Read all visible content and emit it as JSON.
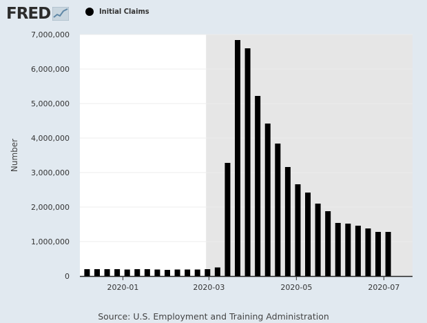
{
  "header": {
    "logo_text": "FRED",
    "legend_label": "Initial Claims"
  },
  "colors": {
    "background": "#e1e9f0",
    "plot_background": "#ffffff",
    "recession_shade": "#e6e6e6",
    "bar": "#000000"
  },
  "icons": {
    "logo": "fred-logo-graph-icon",
    "legend": "legend-dot-icon"
  },
  "chart_data": {
    "type": "bar",
    "ylabel": "Number",
    "ylim": [
      0,
      7000000
    ],
    "yticks": [
      0,
      1000000,
      2000000,
      3000000,
      4000000,
      5000000,
      6000000,
      7000000
    ],
    "ytick_labels": [
      "0",
      "1,000,000",
      "2,000,000",
      "3,000,000",
      "4,000,000",
      "5,000,000",
      "6,000,000",
      "7,000,000"
    ],
    "xlim": [
      "2019-12-02",
      "2020-07-21"
    ],
    "xticks": [
      "2020-01-01",
      "2020-03-01",
      "2020-05-01",
      "2020-07-01"
    ],
    "xtick_labels": [
      "2020-01",
      "2020-03",
      "2020-05",
      "2020-07"
    ],
    "recession_start": "2020-02-28",
    "grid": true,
    "legend_position": "top",
    "series": [
      {
        "name": "Initial Claims",
        "x": [
          "2019-12-07",
          "2019-12-14",
          "2019-12-21",
          "2019-12-28",
          "2020-01-04",
          "2020-01-11",
          "2020-01-18",
          "2020-01-25",
          "2020-02-01",
          "2020-02-08",
          "2020-02-15",
          "2020-02-22",
          "2020-02-29",
          "2020-03-07",
          "2020-03-14",
          "2020-03-21",
          "2020-03-28",
          "2020-04-04",
          "2020-04-11",
          "2020-04-18",
          "2020-04-25",
          "2020-05-02",
          "2020-05-09",
          "2020-05-16",
          "2020-05-23",
          "2020-05-30",
          "2020-06-06",
          "2020-06-13",
          "2020-06-20",
          "2020-06-27",
          "2020-07-04",
          "2020-07-11",
          "2020-07-18"
        ],
        "values": [
          200000,
          200000,
          200000,
          200000,
          190000,
          200000,
          200000,
          190000,
          180000,
          190000,
          190000,
          190000,
          200000,
          250000,
          3280000,
          6840000,
          6600000,
          5220000,
          4420000,
          3840000,
          3160000,
          2660000,
          2420000,
          2100000,
          1880000,
          1540000,
          1520000,
          1460000,
          1380000,
          1280000,
          1280000,
          0,
          0
        ]
      }
    ],
    "source": "Source: U.S. Employment and Training Administration"
  }
}
